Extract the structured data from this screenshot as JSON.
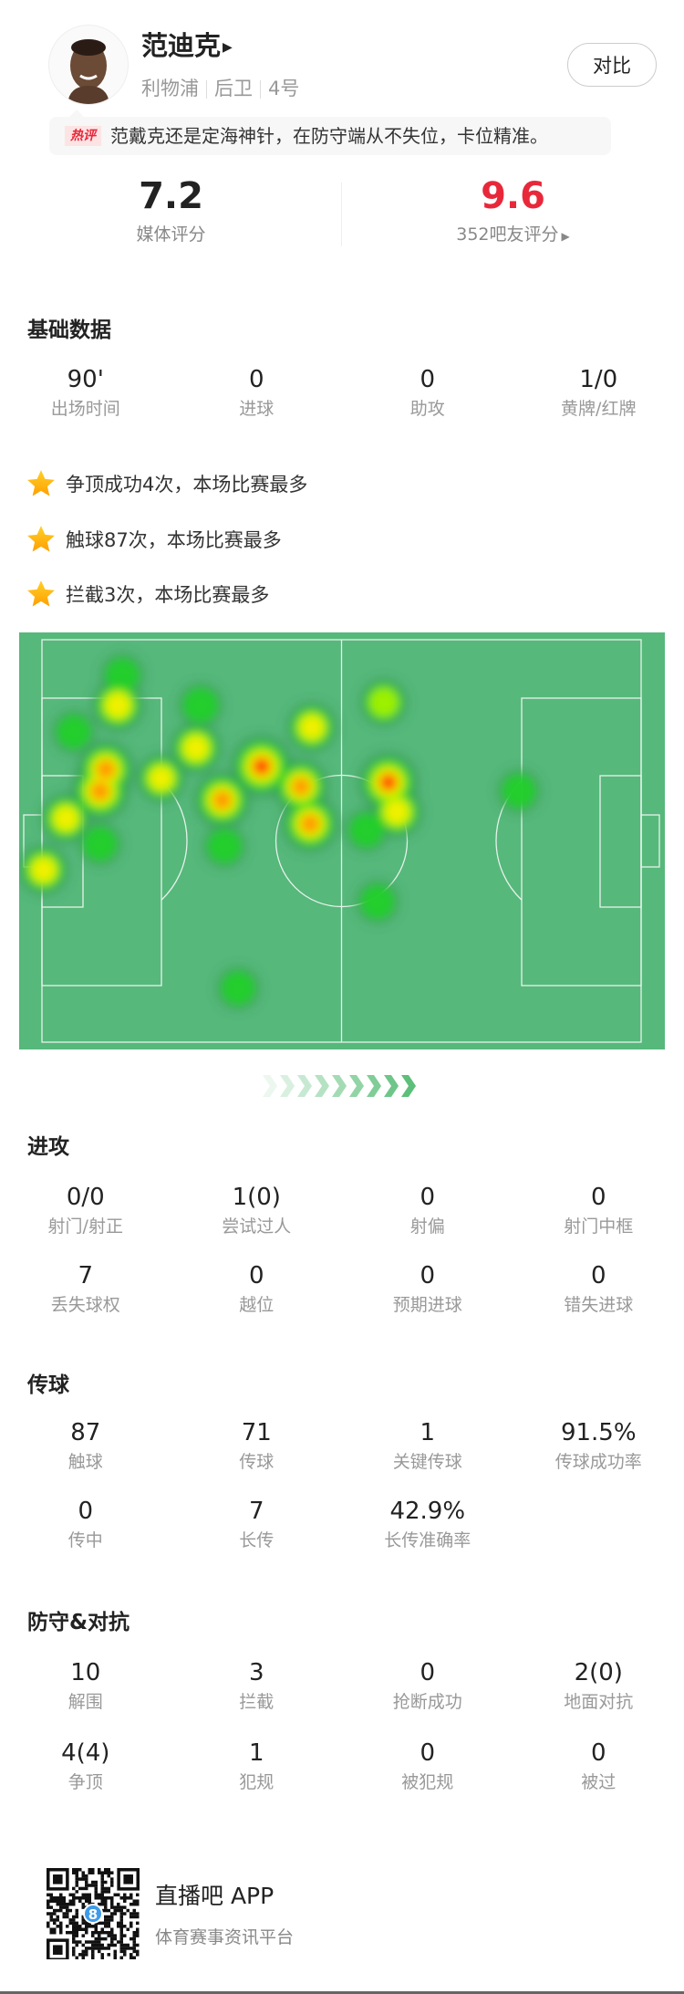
{
  "player": {
    "name": "范迪克",
    "team": "利物浦",
    "position": "后卫",
    "number": "4号",
    "compare_label": "对比"
  },
  "hot_comment": {
    "tag": "热评",
    "text": "范戴克还是定海神针，在防守端从不失位，卡位精准。"
  },
  "ratings": {
    "media": {
      "value": "7.2",
      "label": "媒体评分"
    },
    "fans": {
      "value": "9.6",
      "label": "352吧友评分",
      "color": "#e8283a"
    }
  },
  "basic": {
    "title": "基础数据",
    "stats": [
      {
        "value": "90'",
        "label": "出场时间"
      },
      {
        "value": "0",
        "label": "进球"
      },
      {
        "value": "0",
        "label": "助攻"
      },
      {
        "value": "1/0",
        "label": "黄牌/红牌"
      }
    ],
    "highlights": [
      {
        "icon": "star-icon",
        "text": "争顶成功4次，本场比赛最多"
      },
      {
        "icon": "star-icon",
        "text": "触球87次，本场比赛最多"
      },
      {
        "icon": "star-icon",
        "text": "拦截3次，本场比赛最多"
      }
    ]
  },
  "heatmap": {
    "pitch_color": "#56b87b",
    "unit": "m",
    "pitch_size": [
      105,
      68
    ],
    "points": [
      {
        "x": 13.3,
        "y": 11.1,
        "i": 0.62
      },
      {
        "x": 14.1,
        "y": 6.0,
        "i": 0.3
      },
      {
        "x": 5.6,
        "y": 15.6,
        "i": 0.3
      },
      {
        "x": 10.2,
        "y": 25.6,
        "i": 0.85
      },
      {
        "x": 11.2,
        "y": 21.9,
        "i": 0.8
      },
      {
        "x": 4.2,
        "y": 30.2,
        "i": 0.55
      },
      {
        "x": 10.2,
        "y": 34.5,
        "i": 0.3
      },
      {
        "x": 0.3,
        "y": 38.9,
        "i": 0.55
      },
      {
        "x": 20.9,
        "y": 23.4,
        "i": 0.5
      },
      {
        "x": 27.0,
        "y": 18.3,
        "i": 0.6
      },
      {
        "x": 27.8,
        "y": 11.1,
        "i": 0.35
      },
      {
        "x": 31.6,
        "y": 27.1,
        "i": 0.8
      },
      {
        "x": 38.5,
        "y": 21.4,
        "i": 1.0
      },
      {
        "x": 45.4,
        "y": 24.8,
        "i": 0.75
      },
      {
        "x": 47.0,
        "y": 31.1,
        "i": 0.8
      },
      {
        "x": 47.3,
        "y": 14.8,
        "i": 0.55
      },
      {
        "x": 59.9,
        "y": 10.6,
        "i": 0.45
      },
      {
        "x": 60.7,
        "y": 24.1,
        "i": 0.92
      },
      {
        "x": 62.2,
        "y": 29.1,
        "i": 0.6
      },
      {
        "x": 56.9,
        "y": 32.2,
        "i": 0.3
      },
      {
        "x": 83.6,
        "y": 25.6,
        "i": 0.3
      },
      {
        "x": 58.8,
        "y": 44.3,
        "i": 0.3
      },
      {
        "x": 34.4,
        "y": 58.9,
        "i": 0.3
      },
      {
        "x": 32.0,
        "y": 34.9,
        "i": 0.3
      }
    ]
  },
  "attack": {
    "title": "进攻",
    "stats": [
      {
        "value": "0/0",
        "label": "射门/射正"
      },
      {
        "value": "1(0)",
        "label": "尝试过人"
      },
      {
        "value": "0",
        "label": "射偏"
      },
      {
        "value": "0",
        "label": "射门中框"
      },
      {
        "value": "7",
        "label": "丢失球权"
      },
      {
        "value": "0",
        "label": "越位"
      },
      {
        "value": "0",
        "label": "预期进球"
      },
      {
        "value": "0",
        "label": "错失进球"
      }
    ]
  },
  "passing": {
    "title": "传球",
    "stats": [
      {
        "value": "87",
        "label": "触球"
      },
      {
        "value": "71",
        "label": "传球"
      },
      {
        "value": "1",
        "label": "关键传球"
      },
      {
        "value": "91.5%",
        "label": "传球成功率"
      },
      {
        "value": "0",
        "label": "传中"
      },
      {
        "value": "7",
        "label": "长传"
      },
      {
        "value": "42.9%",
        "label": "长传准确率"
      }
    ]
  },
  "defense": {
    "title": "防守&对抗",
    "stats": [
      {
        "value": "10",
        "label": "解围"
      },
      {
        "value": "3",
        "label": "拦截"
      },
      {
        "value": "0",
        "label": "抢断成功"
      },
      {
        "value": "2(0)",
        "label": "地面对抗"
      },
      {
        "value": "4(4)",
        "label": "争顶"
      },
      {
        "value": "1",
        "label": "犯规"
      },
      {
        "value": "0",
        "label": "被犯规"
      },
      {
        "value": "0",
        "label": "被过"
      }
    ]
  },
  "footer": {
    "app_name": "直播吧 APP",
    "subtitle": "体育赛事资讯平台",
    "qr_badge": "8"
  },
  "colors": {
    "accent_green": "#5cbf7a",
    "red": "#e8283a",
    "star": "#ffb400"
  }
}
